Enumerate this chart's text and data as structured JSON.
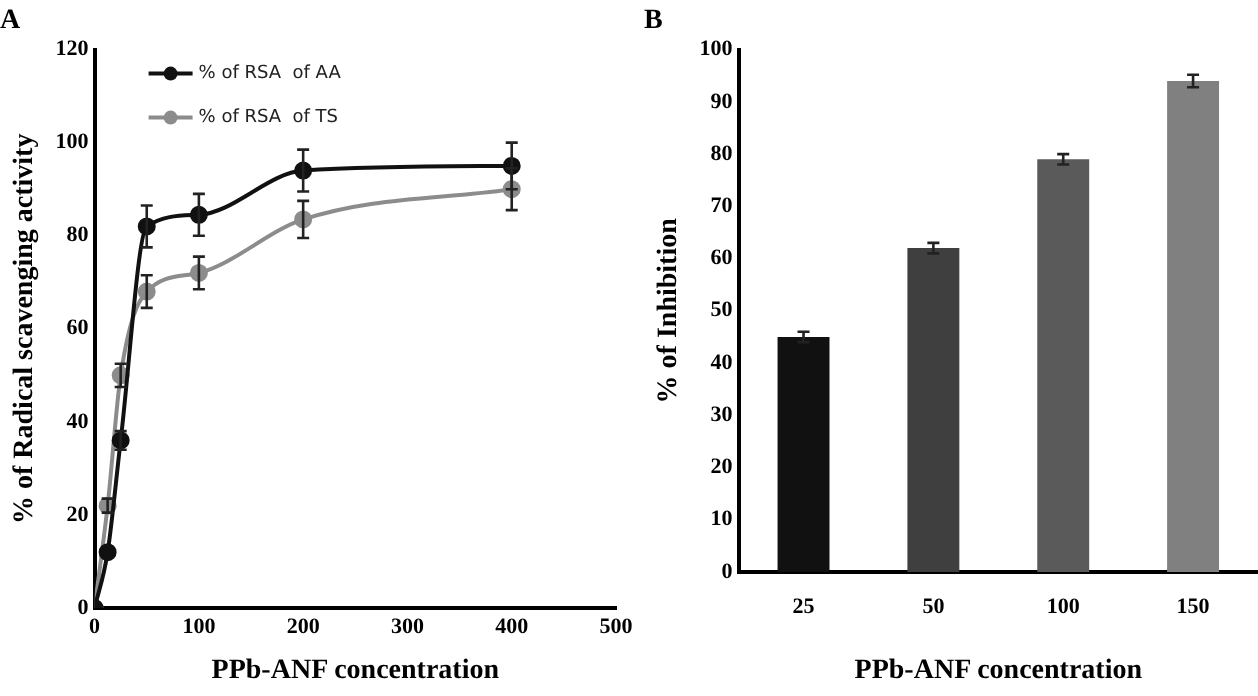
{
  "chart_data": [
    {
      "type": "line",
      "title": "A",
      "xlabel": "PPb-ANF concentration",
      "ylabel": "% of Radical scavenging activity",
      "x": [
        0,
        12.5,
        25,
        50,
        100,
        200,
        400
      ],
      "xlim": [
        0,
        500
      ],
      "xticks": [
        0,
        100,
        200,
        300,
        400,
        500
      ],
      "ylim": [
        0,
        120
      ],
      "yticks": [
        0,
        20,
        40,
        60,
        80,
        100,
        120
      ],
      "grid": false,
      "legend": "top left",
      "marker": "circle",
      "line_style": "solid",
      "series": [
        {
          "name": "% of RSA  of AA",
          "color": "#111111",
          "values": [
            0,
            12,
            36,
            82,
            84.5,
            94,
            95
          ],
          "errors": [
            null,
            null,
            2,
            4.5,
            4.5,
            4.5,
            5
          ]
        },
        {
          "name": "% of RSA  of TS",
          "color": "#8c8c8c",
          "values": [
            0,
            22,
            50,
            68,
            72,
            83.5,
            90
          ],
          "errors": [
            null,
            1.5,
            2.5,
            3.5,
            3.5,
            4,
            4.5
          ]
        }
      ]
    },
    {
      "type": "bar",
      "title": "B",
      "xlabel": "PPb-ANF concentration",
      "ylabel": "% of Inhibition",
      "categories": [
        "25",
        "50",
        "100",
        "150"
      ],
      "values": [
        45,
        62,
        79,
        94
      ],
      "errors": [
        1,
        1,
        1,
        1.2
      ],
      "colors": [
        "#111111",
        "#3f3f3f",
        "#5a5a5a",
        "#808080"
      ],
      "ylim": [
        0,
        100
      ],
      "yticks": [
        0,
        10,
        20,
        30,
        40,
        50,
        60,
        70,
        80,
        90,
        100
      ],
      "grid": false,
      "legend": false
    }
  ]
}
